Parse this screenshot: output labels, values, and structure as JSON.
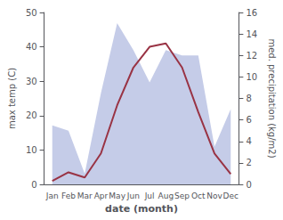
{
  "chart_data": {
    "type": "line",
    "xlabel": "date (month)",
    "ylabel": "max temp (C)",
    "y2label": "med. precipitation (kg/m2)",
    "categories": [
      "Jan",
      "Feb",
      "Mar",
      "Apr",
      "May",
      "Jun",
      "Jul",
      "Aug",
      "Sep",
      "Oct",
      "Nov",
      "Dec"
    ],
    "series": [
      {
        "type": "area",
        "axis": "y2",
        "color": "#c5cce8",
        "values": [
          5.5,
          5.0,
          1.0,
          8.5,
          15.0,
          12.5,
          9.5,
          12.5,
          12.0,
          12.0,
          3.5,
          7.0
        ]
      },
      {
        "type": "line",
        "color": "#993344",
        "values": [
          1.0,
          3.5,
          2.0,
          9.0,
          23.0,
          34.0,
          40.0,
          41.0,
          34.0,
          21.0,
          9.0,
          3.0
        ]
      }
    ],
    "ylim": [
      0,
      50
    ],
    "yticks": [
      0,
      10,
      20,
      30,
      40,
      50
    ],
    "y2lim": [
      0,
      16
    ],
    "y2ticks": [
      0,
      2,
      4,
      6,
      8,
      10,
      12,
      14,
      16
    ],
    "grid": false
  }
}
